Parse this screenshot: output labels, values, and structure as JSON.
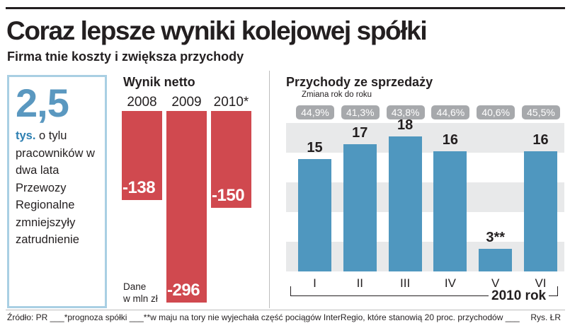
{
  "title": "Coraz lepsze wyniki kolejowej spółki",
  "subtitle": "Firma tnie koszty i zwiększa przychody",
  "stat": {
    "value": "2,5",
    "unit": "tys.",
    "text": "o tylu pracowników w dwa lata Przewozy Regionalne zmniejszyły zatrudnienie"
  },
  "net_note_line1": "Dane",
  "net_note_line2": "w mln zł",
  "footer": {
    "source": "Źródło: PR ___*prognoza spółki ___**w maju na tory nie wyjechała część pociągów InterRegio, które stanowią 20 proc. przychodów ___",
    "credit": "Rys. ŁR"
  },
  "colors": {
    "net_bar": "#d0494f",
    "revenue_bar": "#4f97bf",
    "stat_value": "#5a98c0",
    "stat_border": "#a9cfe3",
    "band": "#e8e9ea",
    "badge": "#a7a9ac"
  },
  "chart_data": [
    {
      "type": "bar",
      "title": "Wynik netto",
      "categories": [
        "2008",
        "2009",
        "2010*"
      ],
      "values": [
        -138,
        -296,
        -150
      ],
      "labels": [
        "-138",
        "-296",
        "-150"
      ],
      "ylabel": "Dane w mln zł",
      "ylim": [
        -300,
        0
      ]
    },
    {
      "type": "bar",
      "title": "Przychody ze sprzedaży",
      "subtitle": "Zmiana rok do roku",
      "categories": [
        "I",
        "II",
        "III",
        "IV",
        "V",
        "VI"
      ],
      "values": [
        15,
        17,
        18,
        16,
        3,
        16
      ],
      "labels": [
        "15",
        "17",
        "18",
        "16",
        "3**",
        "16"
      ],
      "yoy_change": [
        "44,9%",
        "41,3%",
        "43,8%",
        "44,6%",
        "40,6%",
        "45,5%"
      ],
      "xlabel": "2010 rok",
      "ylim": [
        0,
        20
      ]
    }
  ]
}
